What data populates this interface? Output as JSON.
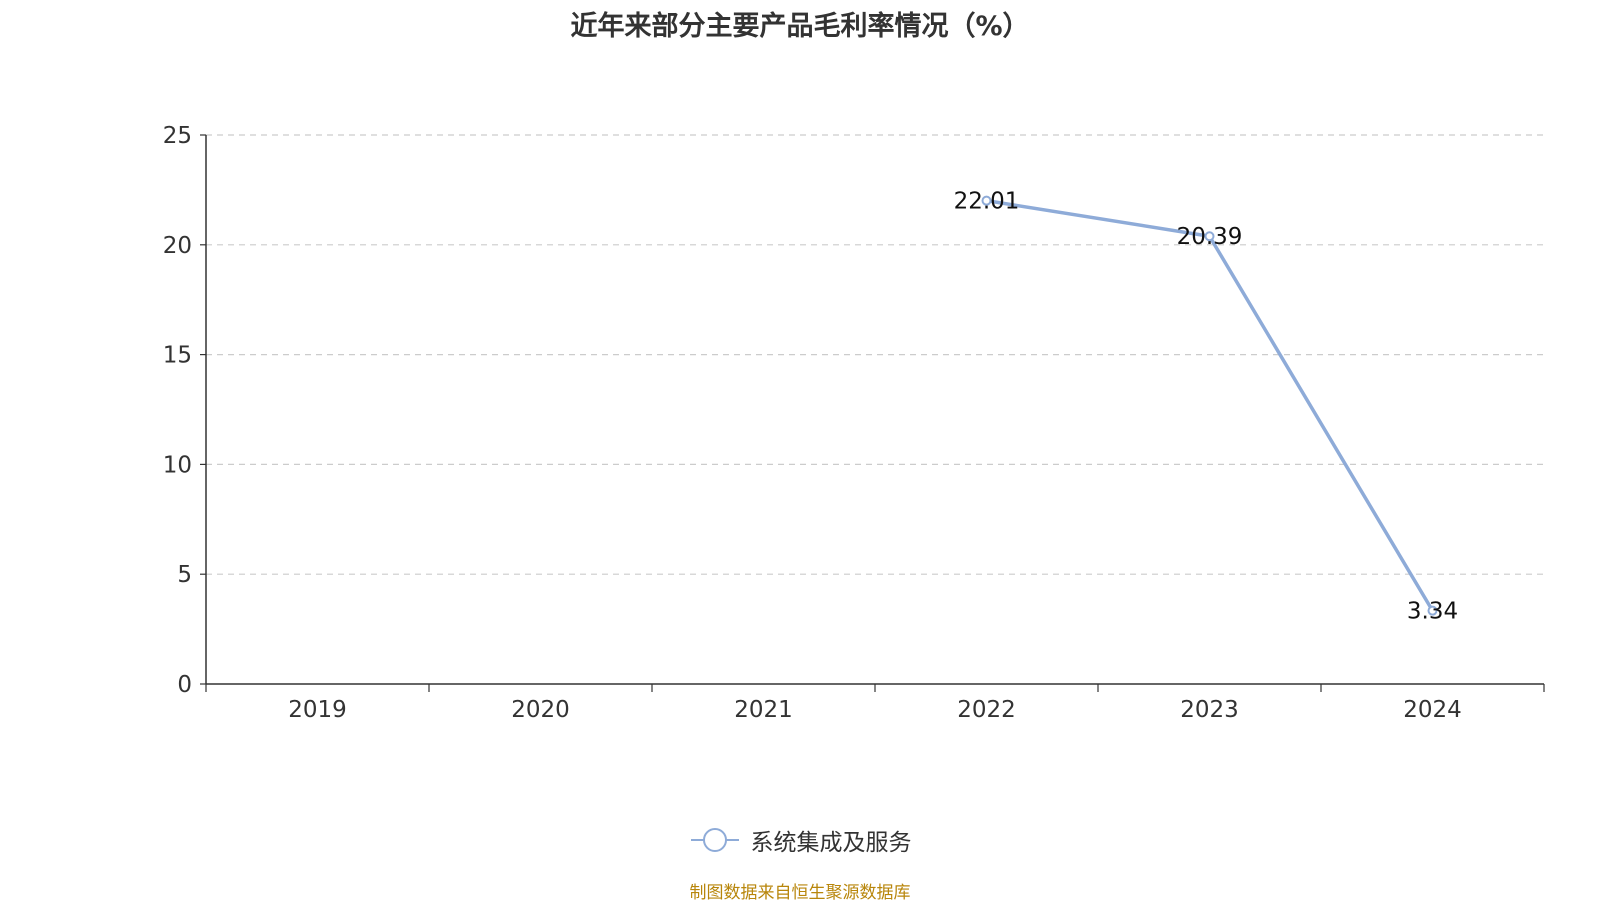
{
  "title": "近年来部分主要产品毛利率情况（%）",
  "source": "制图数据来自恒生聚源数据库",
  "chart_data": {
    "type": "line",
    "title": "近年来部分主要产品毛利率情况（%）",
    "categories": [
      "2019",
      "2020",
      "2021",
      "2022",
      "2023",
      "2024"
    ],
    "series": [
      {
        "name": "系统集成及服务",
        "color": "#8eabd8",
        "values": [
          null,
          null,
          null,
          22.01,
          20.39,
          3.34
        ]
      }
    ],
    "ylim": [
      0,
      25
    ],
    "yticks": [
      0,
      5,
      10,
      15,
      20,
      25
    ],
    "grid": true,
    "legend": "bottom-center"
  }
}
